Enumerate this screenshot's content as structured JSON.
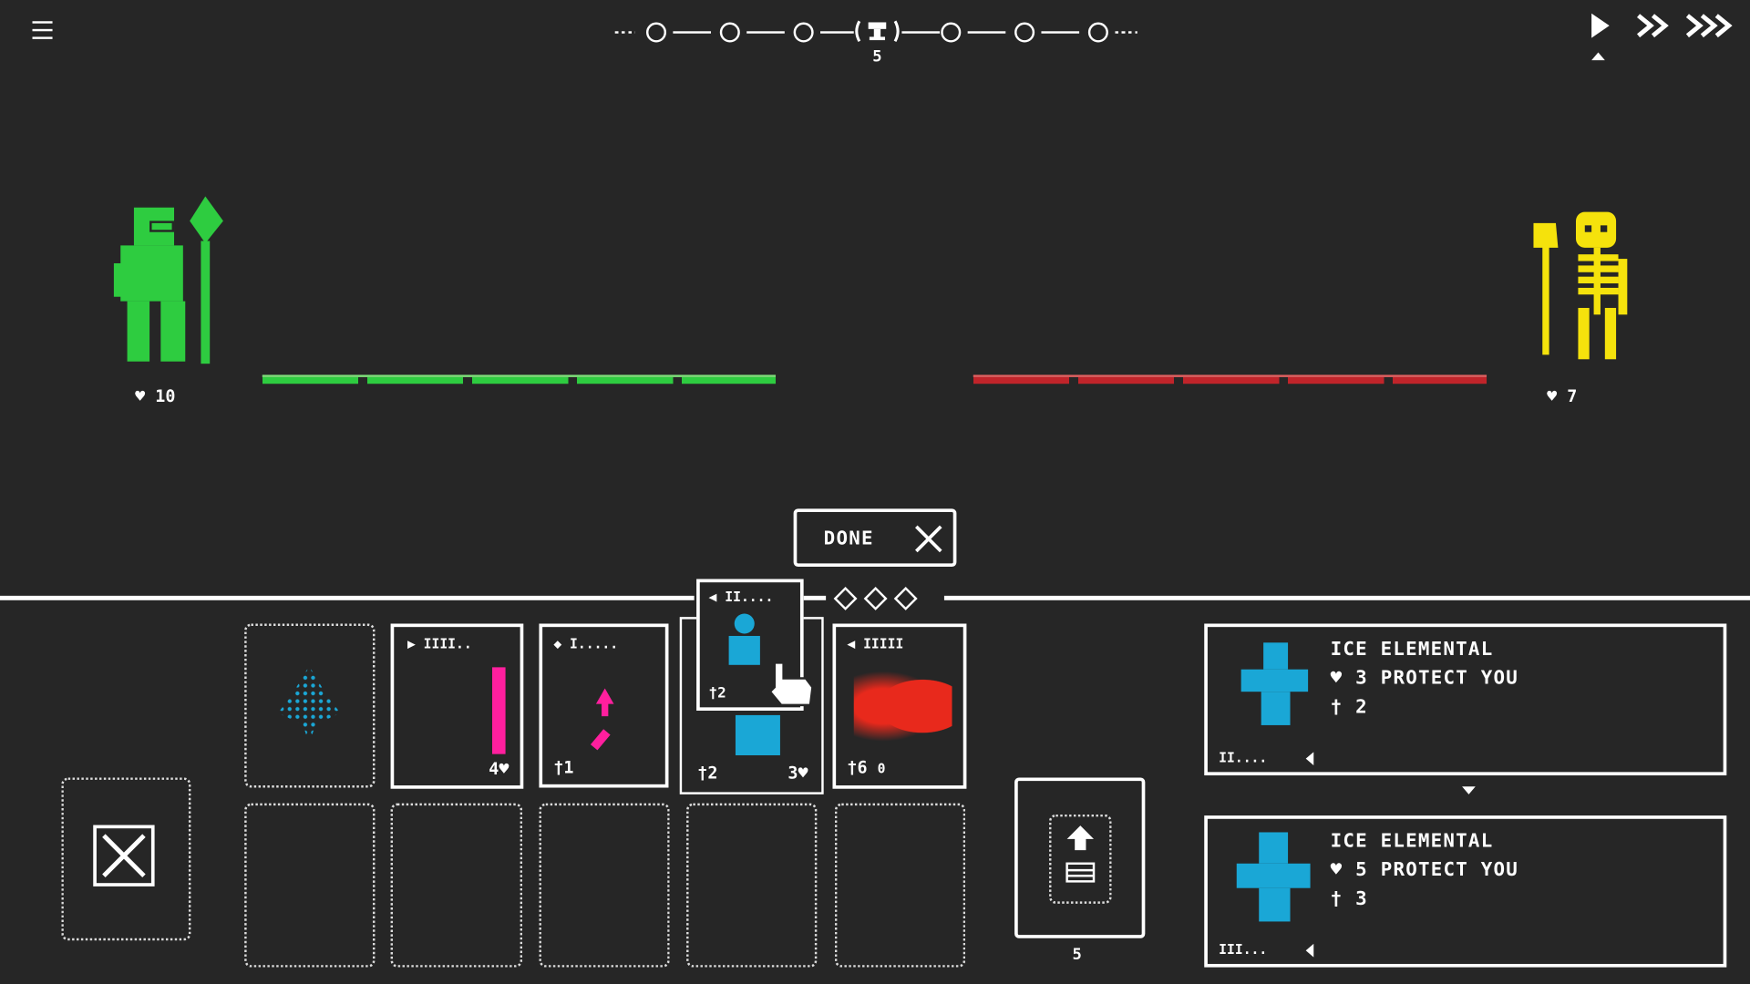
{
  "top_bar": {
    "menu_icon": "hamburger-menu-icon",
    "current_stage": "5",
    "speed_icons": [
      "play-icon",
      "fast-forward-icon",
      "fastest-forward-icon"
    ]
  },
  "player": {
    "health": "10",
    "color": "#2ecc40"
  },
  "enemy": {
    "health": "7",
    "color": "#f5e20c"
  },
  "lanes": {
    "player_color": "#2ecc40",
    "enemy_color": "#c0242a"
  },
  "done_button": {
    "label": "DONE"
  },
  "hand": [
    {
      "color": "#1aa7d6",
      "attack": "",
      "health": "",
      "faded": true
    },
    {
      "color": "#ff1f9e",
      "health": "4"
    },
    {
      "color": "#ff1f9e",
      "attack": "1"
    },
    {
      "color": "#1aa7d6",
      "attack": "2",
      "health": "3"
    },
    {
      "color": "#e8291c",
      "attack": "6",
      "extra": "0"
    }
  ],
  "held_card": {
    "attack": "2",
    "color": "#1aa7d6"
  },
  "draw_pile": {
    "count": "5"
  },
  "info_panels": [
    {
      "name": "ICE ELEMENTAL",
      "health": "3",
      "ability": "PROTECT YOU",
      "attack": "2"
    },
    {
      "name": "ICE ELEMENTAL",
      "health": "5",
      "ability": "PROTECT YOU",
      "attack": "3"
    }
  ]
}
